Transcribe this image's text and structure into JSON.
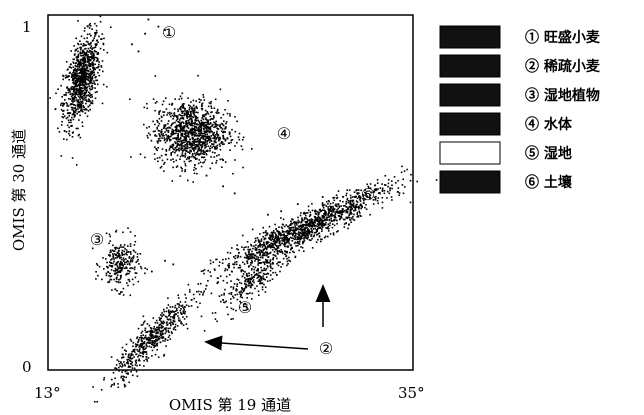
{
  "chart_data": {
    "type": "scatter",
    "xlabel": "OMIS 第 19 通道",
    "ylabel": "OMIS 第 30 通道",
    "x_tick_labels": [
      "13°",
      "35°"
    ],
    "y_tick_labels": [
      "0",
      "1"
    ],
    "xlim": [
      13,
      35
    ],
    "ylim": [
      0,
      1
    ],
    "clusters": [
      {
        "id": 1,
        "marker": "①",
        "center": [
          15.0,
          0.82
        ],
        "spread": [
          0.55,
          0.055
        ],
        "tilt": 0.06,
        "n": 900,
        "stray": [
          [
            18.8,
            0.95
          ],
          [
            19.6,
            0.97
          ],
          [
            18.0,
            0.92
          ],
          [
            19.0,
            0.99
          ],
          [
            20.0,
            0.96
          ],
          [
            18.4,
            0.9
          ]
        ]
      },
      {
        "id": 2,
        "marker": "②",
        "center": [
          25.5,
          0.26
        ],
        "spread": [
          1.1,
          0.022
        ],
        "tilt": 0.035,
        "n": 260,
        "stray": [
          [
            23.5,
            0.2
          ],
          [
            24.0,
            0.22
          ]
        ]
      },
      {
        "id": 3,
        "marker": "③",
        "center": [
          17.3,
          0.3
        ],
        "spread": [
          0.55,
          0.035
        ],
        "tilt": 0.0,
        "n": 260,
        "stray": [
          [
            20.0,
            0.31
          ],
          [
            20.5,
            0.3
          ],
          [
            19.2,
            0.28
          ],
          [
            17.0,
            0.23
          ]
        ]
      },
      {
        "id": 4,
        "marker": "④",
        "center": [
          21.6,
          0.67
        ],
        "spread": [
          1.1,
          0.045
        ],
        "tilt": 0.0,
        "n": 1100,
        "stray": [
          [
            23.5,
            0.52
          ],
          [
            24.2,
            0.5
          ],
          [
            22.5,
            0.55
          ],
          [
            21.8,
            0.58
          ]
        ]
      },
      {
        "id": 5,
        "marker": "⑤",
        "center": [
          19.2,
          0.09
        ],
        "spread": [
          1.2,
          0.026
        ],
        "tilt": 0.045,
        "n": 520,
        "stray": [
          [
            21.2,
            0.18
          ],
          [
            21.6,
            0.2
          ],
          [
            22.5,
            0.24
          ],
          [
            23.2,
            0.25
          ],
          [
            21.0,
            0.16
          ]
        ]
      },
      {
        "id": 6,
        "marker": "⑥",
        "center": [
          28.4,
          0.4
        ],
        "spread": [
          2.5,
          0.022
        ],
        "tilt": 0.022,
        "n": 1300,
        "stray": [
          [
            27.0,
            0.45
          ],
          [
            28.0,
            0.47
          ],
          [
            29.5,
            0.49
          ],
          [
            26.2,
            0.44
          ],
          [
            30.0,
            0.46
          ]
        ]
      }
    ],
    "arrows": [
      {
        "from_label": "②",
        "to_cluster": 5
      },
      {
        "from_label": "②",
        "to_cluster": 2
      }
    ],
    "legend": {
      "placement": "right",
      "entries": [
        {
          "text": "① 旺盛小麦",
          "color": "#111111"
        },
        {
          "text": "② 稀疏小麦",
          "color": "#111111"
        },
        {
          "text": "③ 湿地植物",
          "color": "#111111"
        },
        {
          "text": "④ 水体",
          "color": "#111111"
        },
        {
          "text": "⑤ 湿地",
          "color": "#ffffff"
        },
        {
          "text": "⑥ 土壤",
          "color": "#111111"
        }
      ]
    }
  }
}
